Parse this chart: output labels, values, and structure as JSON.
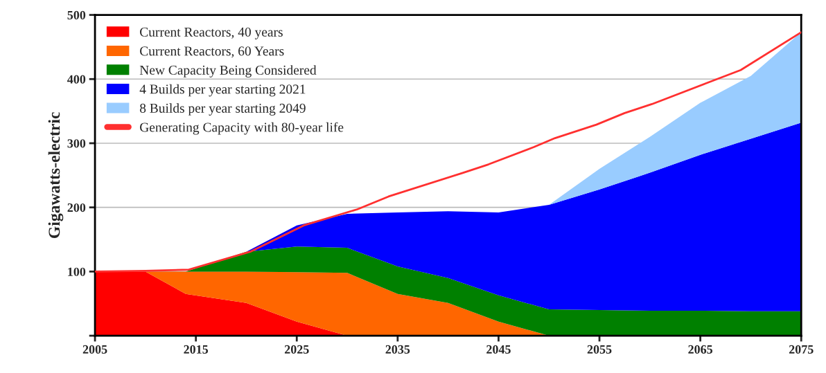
{
  "chart_data": {
    "type": "area",
    "stacked": true,
    "ylabel": "Gigawatts-electric",
    "x": [
      2005,
      2010,
      2014,
      2020,
      2025,
      2030,
      2035,
      2040,
      2045,
      2050,
      2055,
      2060,
      2065,
      2070,
      2075
    ],
    "series": [
      {
        "name": "Current Reactors, 40 years",
        "color": "#ff0000",
        "values": [
          100,
          100,
          65,
          51,
          22,
          0,
          null,
          null,
          null,
          null,
          null,
          null,
          null,
          null,
          null
        ]
      },
      {
        "name": "Current Reactors, 60 Years",
        "color": "#ff6600",
        "values": [
          null,
          0,
          35,
          49,
          77,
          98,
          65,
          51,
          22,
          0,
          null,
          null,
          null,
          null,
          null
        ]
      },
      {
        "name": "New Capacity Being Considered",
        "color": "#008000",
        "values": [
          null,
          null,
          0,
          31,
          40,
          39,
          43,
          39,
          41,
          41,
          40,
          39,
          39,
          38,
          38
        ]
      },
      {
        "name": "4 Builds per year starting 2021",
        "color": "#0000ff",
        "values": [
          null,
          null,
          null,
          0,
          33,
          53,
          84,
          104,
          129,
          163,
          188,
          215,
          243,
          269,
          294
        ]
      },
      {
        "name": "8 Builds per year starting 2049",
        "color": "#99ccff",
        "values": [
          null,
          null,
          null,
          null,
          null,
          null,
          null,
          null,
          null,
          0,
          32,
          56,
          81,
          98,
          141
        ]
      },
      {
        "name": "Generating Capacity with 80-year life",
        "type": "line",
        "color": "#ff3030",
        "x": [
          2005,
          2010,
          2014.3,
          2020.4,
          2025.7,
          2031,
          2034.1,
          2041.5,
          2044,
          2048.5,
          2050.6,
          2054.7,
          2057.5,
          2060.2,
          2065.5,
          2069,
          2075
        ],
        "values": [
          100,
          101,
          103,
          131,
          172,
          197,
          217,
          254,
          267,
          294,
          308,
          329,
          347,
          361,
          393,
          414,
          473
        ]
      }
    ],
    "xlim": [
      2005,
      2075
    ],
    "xticks": [
      2005,
      2015,
      2025,
      2035,
      2045,
      2055,
      2065,
      2075
    ],
    "ylim": [
      0,
      500
    ],
    "yticks": [
      {
        "value": 0,
        "label": null
      },
      100,
      200,
      300,
      400,
      500
    ],
    "grid": "y",
    "legend": "top left"
  }
}
